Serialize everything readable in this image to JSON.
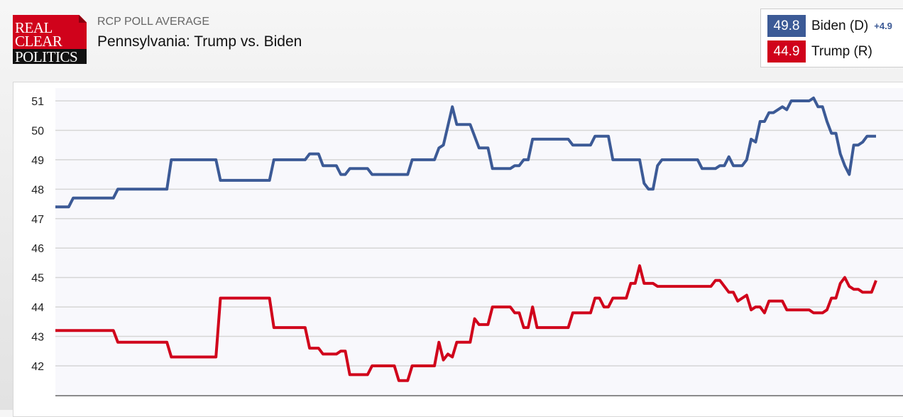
{
  "header": {
    "subtitle": "RCP POLL AVERAGE",
    "title": "Pennsylvania: Trump vs. Biden",
    "logo_text": [
      "REAL",
      "CLEAR",
      "POLITICS"
    ]
  },
  "legend": {
    "items": [
      {
        "value": "49.8",
        "name": "Biden (D)",
        "spread": "+4.9",
        "color": "#3c5a96"
      },
      {
        "value": "44.9",
        "name": "Trump (R)",
        "color": "#d0021b"
      }
    ]
  },
  "chart_data": {
    "type": "line",
    "title": "Pennsylvania: Trump vs. Biden",
    "xlabel": "",
    "ylabel": "",
    "ylim": [
      41,
      51.4
    ],
    "xlim": [
      0,
      184
    ],
    "grid": true,
    "yticks": [
      42,
      43,
      44,
      45,
      46,
      47,
      48,
      49,
      50,
      51
    ],
    "series": [
      {
        "name": "Biden (D)",
        "color": "#3c5a96",
        "points": [
          [
            0,
            47.4
          ],
          [
            3,
            47.4
          ],
          [
            4,
            47.7
          ],
          [
            13,
            47.7
          ],
          [
            14,
            48.0
          ],
          [
            25,
            48.0
          ],
          [
            26,
            49.0
          ],
          [
            36,
            49.0
          ],
          [
            37,
            48.3
          ],
          [
            48,
            48.3
          ],
          [
            49,
            49.0
          ],
          [
            56,
            49.0
          ],
          [
            57,
            49.2
          ],
          [
            59,
            49.2
          ],
          [
            60,
            48.8
          ],
          [
            63,
            48.8
          ],
          [
            64,
            48.5
          ],
          [
            65,
            48.5
          ],
          [
            66,
            48.7
          ],
          [
            70,
            48.7
          ],
          [
            71,
            48.5
          ],
          [
            79,
            48.5
          ],
          [
            80,
            49.0
          ],
          [
            85,
            49.0
          ],
          [
            86,
            49.4
          ],
          [
            87,
            49.5
          ],
          [
            89,
            50.8
          ],
          [
            90,
            50.2
          ],
          [
            93,
            50.2
          ],
          [
            95,
            49.4
          ],
          [
            97,
            49.4
          ],
          [
            98,
            48.7
          ],
          [
            102,
            48.7
          ],
          [
            103,
            48.8
          ],
          [
            104,
            48.8
          ],
          [
            105,
            49.0
          ],
          [
            106,
            49.0
          ],
          [
            107,
            49.7
          ],
          [
            115,
            49.7
          ],
          [
            116,
            49.5
          ],
          [
            120,
            49.5
          ],
          [
            121,
            49.8
          ],
          [
            124,
            49.8
          ],
          [
            125,
            49.0
          ],
          [
            131,
            49.0
          ],
          [
            132,
            48.2
          ],
          [
            133,
            48.0
          ],
          [
            134,
            48.0
          ],
          [
            135,
            48.8
          ],
          [
            136,
            49.0
          ],
          [
            144,
            49.0
          ],
          [
            145,
            48.7
          ],
          [
            148,
            48.7
          ],
          [
            149,
            48.8
          ],
          [
            150,
            48.8
          ],
          [
            151,
            49.1
          ],
          [
            152,
            48.8
          ],
          [
            154,
            48.8
          ],
          [
            155,
            49.0
          ],
          [
            156,
            49.7
          ],
          [
            157,
            49.6
          ],
          [
            158,
            50.3
          ],
          [
            159,
            50.3
          ],
          [
            160,
            50.6
          ],
          [
            161,
            50.6
          ],
          [
            163,
            50.8
          ],
          [
            164,
            50.7
          ],
          [
            165,
            51.0
          ],
          [
            169,
            51.0
          ],
          [
            170,
            51.1
          ],
          [
            171,
            50.8
          ],
          [
            172,
            50.8
          ],
          [
            173,
            50.3
          ],
          [
            174,
            49.9
          ],
          [
            175,
            49.9
          ],
          [
            176,
            49.2
          ],
          [
            177,
            48.8
          ],
          [
            178,
            48.5
          ],
          [
            179,
            49.5
          ],
          [
            180,
            49.5
          ],
          [
            181,
            49.6
          ],
          [
            182,
            49.8
          ],
          [
            184,
            49.8
          ]
        ]
      },
      {
        "name": "Trump (R)",
        "color": "#d0021b",
        "points": [
          [
            0,
            43.2
          ],
          [
            13,
            43.2
          ],
          [
            14,
            42.8
          ],
          [
            25,
            42.8
          ],
          [
            26,
            42.3
          ],
          [
            36,
            42.3
          ],
          [
            37,
            44.3
          ],
          [
            48,
            44.3
          ],
          [
            49,
            43.3
          ],
          [
            56,
            43.3
          ],
          [
            57,
            42.6
          ],
          [
            59,
            42.6
          ],
          [
            60,
            42.4
          ],
          [
            63,
            42.4
          ],
          [
            64,
            42.5
          ],
          [
            65,
            42.5
          ],
          [
            66,
            41.7
          ],
          [
            70,
            41.7
          ],
          [
            71,
            42.0
          ],
          [
            76,
            42.0
          ],
          [
            77,
            41.5
          ],
          [
            79,
            41.5
          ],
          [
            80,
            42.0
          ],
          [
            85,
            42.0
          ],
          [
            86,
            42.8
          ],
          [
            87,
            42.2
          ],
          [
            88,
            42.4
          ],
          [
            89,
            42.3
          ],
          [
            90,
            42.8
          ],
          [
            93,
            42.8
          ],
          [
            94,
            43.6
          ],
          [
            95,
            43.4
          ],
          [
            97,
            43.4
          ],
          [
            98,
            44.0
          ],
          [
            102,
            44.0
          ],
          [
            103,
            43.8
          ],
          [
            104,
            43.8
          ],
          [
            105,
            43.3
          ],
          [
            106,
            43.3
          ],
          [
            107,
            44.0
          ],
          [
            108,
            43.3
          ],
          [
            115,
            43.3
          ],
          [
            116,
            43.8
          ],
          [
            120,
            43.8
          ],
          [
            121,
            44.3
          ],
          [
            122,
            44.3
          ],
          [
            123,
            44.0
          ],
          [
            124,
            44.0
          ],
          [
            125,
            44.3
          ],
          [
            128,
            44.3
          ],
          [
            129,
            44.8
          ],
          [
            130,
            44.8
          ],
          [
            131,
            45.4
          ],
          [
            132,
            44.8
          ],
          [
            134,
            44.8
          ],
          [
            135,
            44.7
          ],
          [
            147,
            44.7
          ],
          [
            148,
            44.9
          ],
          [
            149,
            44.9
          ],
          [
            150,
            44.7
          ],
          [
            151,
            44.5
          ],
          [
            152,
            44.5
          ],
          [
            153,
            44.2
          ],
          [
            155,
            44.4
          ],
          [
            156,
            43.9
          ],
          [
            157,
            44.0
          ],
          [
            158,
            44.0
          ],
          [
            159,
            43.8
          ],
          [
            160,
            44.2
          ],
          [
            163,
            44.2
          ],
          [
            164,
            43.9
          ],
          [
            169,
            43.9
          ],
          [
            170,
            43.8
          ],
          [
            172,
            43.8
          ],
          [
            173,
            43.9
          ],
          [
            174,
            44.3
          ],
          [
            175,
            44.3
          ],
          [
            176,
            44.8
          ],
          [
            177,
            45.0
          ],
          [
            178,
            44.7
          ],
          [
            179,
            44.6
          ],
          [
            180,
            44.6
          ],
          [
            181,
            44.5
          ],
          [
            183,
            44.5
          ],
          [
            184,
            44.9
          ]
        ]
      }
    ]
  }
}
